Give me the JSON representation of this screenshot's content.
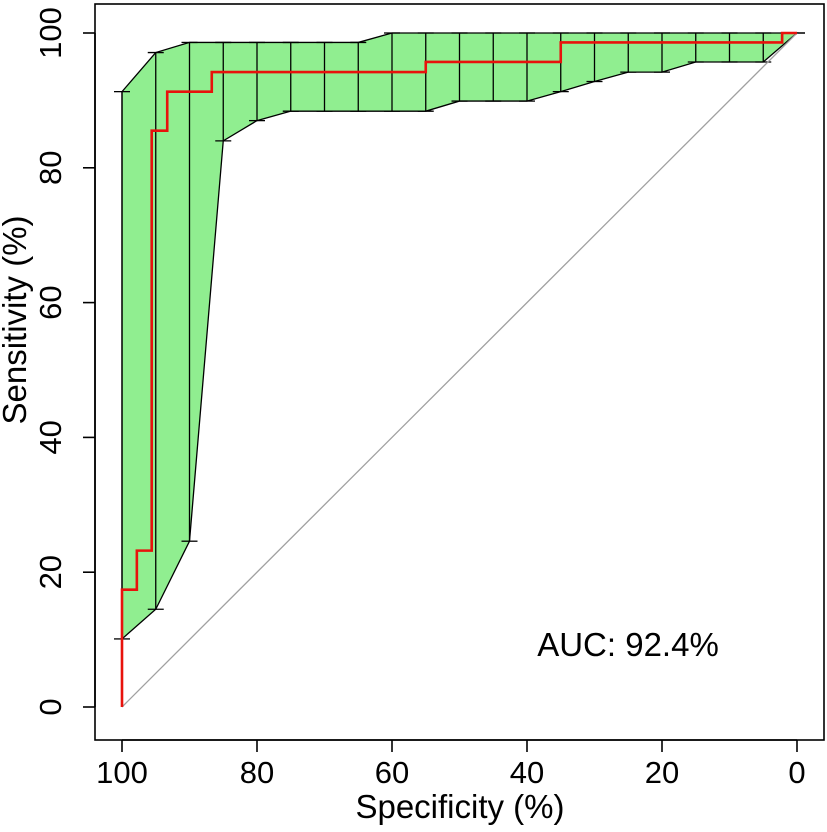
{
  "chart_data": {
    "type": "line",
    "title": "",
    "xlabel": "Specificity (%)",
    "ylabel": "Sensitivity (%)",
    "xlim": [
      100,
      0
    ],
    "ylim": [
      0,
      100
    ],
    "x_reversed": true,
    "x_ticks": [
      "100",
      "80",
      "60",
      "40",
      "20",
      "0"
    ],
    "y_ticks": [
      "0",
      "20",
      "40",
      "60",
      "80",
      "100"
    ],
    "grid": false,
    "legend": "none",
    "annotation": "AUC: 92.4%",
    "colors": {
      "roc_line": "#e8120c",
      "ci_fill": "#90ee90",
      "ci_edge": "#000000",
      "diagonal": "#a0a0a0"
    },
    "series": [
      {
        "type": "step",
        "specificity": [
          100,
          100,
          97.8,
          97.8,
          95.6,
          95.6,
          93.3,
          93.3,
          86.7,
          86.7,
          55,
          55,
          35,
          35,
          2.2,
          2.2,
          0
        ],
        "sensitivity": [
          0,
          17.4,
          17.4,
          23.2,
          23.2,
          85.5,
          85.5,
          91.3,
          91.3,
          94.2,
          94.2,
          95.7,
          95.7,
          98.6,
          98.6,
          100,
          100
        ]
      }
    ],
    "confidence_band": {
      "specificity": [
        100,
        95,
        90,
        85,
        80,
        75,
        70,
        65,
        60,
        55,
        50,
        45,
        40,
        35,
        30,
        25,
        20,
        15,
        10,
        5,
        0
      ],
      "lower": [
        10.1,
        14.5,
        24.6,
        84,
        87,
        88.4,
        88.4,
        88.4,
        88.4,
        88.4,
        89.9,
        89.9,
        89.9,
        91.3,
        92.8,
        94.2,
        94.2,
        95.7,
        95.7,
        95.7,
        100
      ],
      "upper": [
        91.3,
        97.1,
        98.6,
        98.6,
        98.6,
        98.6,
        98.6,
        98.6,
        100,
        100,
        100,
        100,
        100,
        100,
        100,
        100,
        100,
        100,
        100,
        100,
        100
      ]
    }
  }
}
